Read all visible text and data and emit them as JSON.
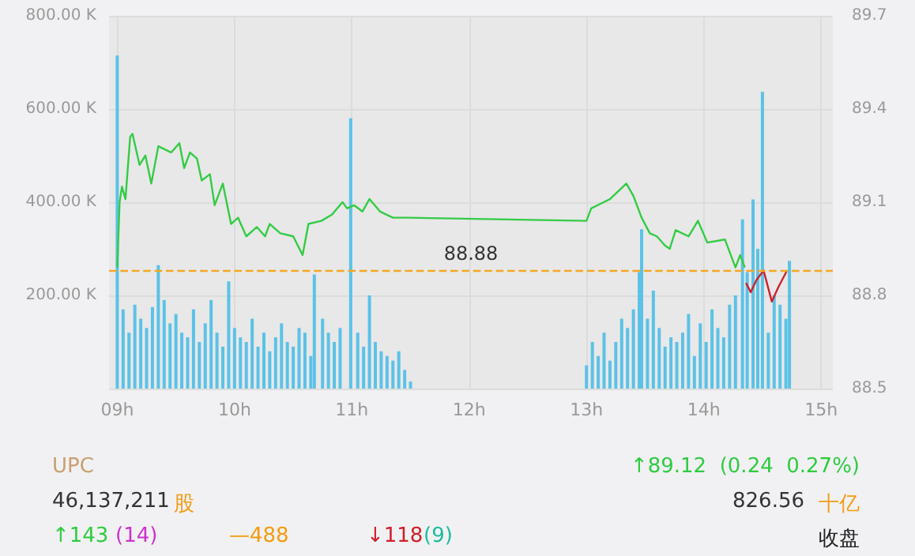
{
  "chart_data": {
    "type": "bar",
    "xlim": [
      8.93,
      15.1
    ],
    "xticks": [
      {
        "value": 9,
        "label": "09h"
      },
      {
        "value": 10,
        "label": "10h"
      },
      {
        "value": 11,
        "label": "11h"
      },
      {
        "value": 12,
        "label": "12h"
      },
      {
        "value": 13,
        "label": "13h"
      },
      {
        "value": 14,
        "label": "14h"
      },
      {
        "value": 15,
        "label": "15h"
      }
    ],
    "ylim": [
      0,
      800
    ],
    "yticks": [
      {
        "value": 0,
        "label": null
      },
      {
        "value": 200,
        "label": "200.00 K"
      },
      {
        "value": 400,
        "label": "400.00 K"
      },
      {
        "value": 600,
        "label": "600.00 K"
      },
      {
        "value": 800,
        "label": "800.00 K"
      }
    ],
    "y2lim": [
      88.5,
      89.7
    ],
    "y2ticks": [
      88.5,
      88.8,
      89.1,
      89.4,
      89.7
    ],
    "grid": true,
    "marker": "none",
    "line_style": "solid",
    "series": [
      {
        "color": "#5bc2e7",
        "x": [
          9.0,
          9.05,
          9.1,
          9.15,
          9.2,
          9.25,
          9.3,
          9.35,
          9.4,
          9.45,
          9.5,
          9.55,
          9.6,
          9.65,
          9.7,
          9.75,
          9.8,
          9.85,
          9.9,
          9.95,
          10.0,
          10.05,
          10.1,
          10.15,
          10.2,
          10.25,
          10.3,
          10.35,
          10.4,
          10.45,
          10.5,
          10.55,
          10.6,
          10.65,
          10.68,
          10.75,
          10.8,
          10.85,
          10.9,
          10.99,
          11.05,
          11.1,
          11.15,
          11.2,
          11.25,
          11.3,
          11.35,
          11.4,
          11.45,
          11.5,
          13.0,
          13.05,
          13.1,
          13.15,
          13.2,
          13.25,
          13.3,
          13.35,
          13.4,
          13.45,
          13.47,
          13.52,
          13.57,
          13.62,
          13.67,
          13.72,
          13.77,
          13.82,
          13.87,
          13.92,
          13.97,
          14.02,
          14.07,
          14.12,
          14.17,
          14.22,
          14.27,
          14.33,
          14.37,
          14.42,
          14.46,
          14.5,
          14.55,
          14.6,
          14.65,
          14.7,
          14.73
        ],
        "values": [
          715,
          170,
          120,
          180,
          150,
          130,
          175,
          265,
          190,
          140,
          160,
          120,
          110,
          170,
          100,
          140,
          190,
          120,
          90,
          230,
          130,
          110,
          100,
          150,
          90,
          120,
          80,
          110,
          140,
          100,
          90,
          130,
          120,
          70,
          245,
          150,
          120,
          100,
          130,
          580,
          120,
          90,
          200,
          100,
          80,
          70,
          60,
          80,
          40,
          15,
          50,
          100,
          70,
          120,
          60,
          100,
          150,
          130,
          170,
          250,
          342,
          150,
          210,
          130,
          90,
          110,
          100,
          120,
          160,
          70,
          140,
          100,
          170,
          130,
          110,
          180,
          200,
          363,
          250,
          406,
          300,
          637,
          120,
          200,
          180,
          150,
          274
        ]
      },
      {
        "type": "line",
        "axis": "y2",
        "color": "#33cc44",
        "x": [
          9.0,
          9.02,
          9.04,
          9.07,
          9.11,
          9.13,
          9.19,
          9.24,
          9.29,
          9.35,
          9.46,
          9.53,
          9.57,
          9.62,
          9.68,
          9.72,
          9.79,
          9.83,
          9.9,
          9.97,
          10.03,
          10.1,
          10.19,
          10.26,
          10.3,
          10.39,
          10.5,
          10.58,
          10.63,
          10.74,
          10.83,
          10.92,
          10.96,
          11.02,
          11.09,
          11.15,
          11.24,
          11.35,
          11.47,
          13.0,
          13.04,
          13.2,
          13.34,
          13.4,
          13.47,
          13.54,
          13.6,
          13.67,
          13.71,
          13.76,
          13.87,
          13.95,
          14.03,
          14.18,
          14.27,
          14.31,
          14.35
        ],
        "values": [
          88.89,
          89.1,
          89.15,
          89.11,
          89.31,
          89.32,
          89.22,
          89.25,
          89.16,
          89.28,
          89.26,
          89.29,
          89.21,
          89.26,
          89.24,
          89.17,
          89.19,
          89.09,
          89.16,
          89.03,
          89.05,
          88.99,
          89.02,
          88.99,
          89.03,
          89.0,
          88.99,
          88.93,
          89.03,
          89.04,
          89.06,
          89.1,
          89.08,
          89.09,
          89.07,
          89.11,
          89.07,
          89.05,
          89.05,
          89.04,
          89.08,
          89.11,
          89.16,
          89.12,
          89.05,
          89.0,
          88.99,
          88.96,
          88.95,
          89.01,
          88.99,
          89.04,
          88.97,
          88.98,
          88.89,
          88.93,
          88.89
        ]
      },
      {
        "type": "line",
        "axis": "y2",
        "color": "#d0202a",
        "x": [
          14.36,
          14.4,
          14.45,
          14.51,
          14.58,
          14.64,
          14.71
        ],
        "values": [
          88.84,
          88.81,
          88.85,
          88.88,
          88.78,
          88.83,
          88.88
        ]
      }
    ],
    "ref_lines": [
      {
        "axis": "y2",
        "value": 88.88,
        "label": "88.88",
        "color": "#f5a623",
        "line_style": "dashed"
      }
    ],
    "annotations": [
      "UPC",
      "↑89.12  (0.24  0.27%)",
      "46,137,211",
      "股",
      "826.56",
      "十亿",
      "↑143",
      "(14)",
      "—488",
      "↓118",
      "(9)",
      "收盘"
    ]
  }
}
